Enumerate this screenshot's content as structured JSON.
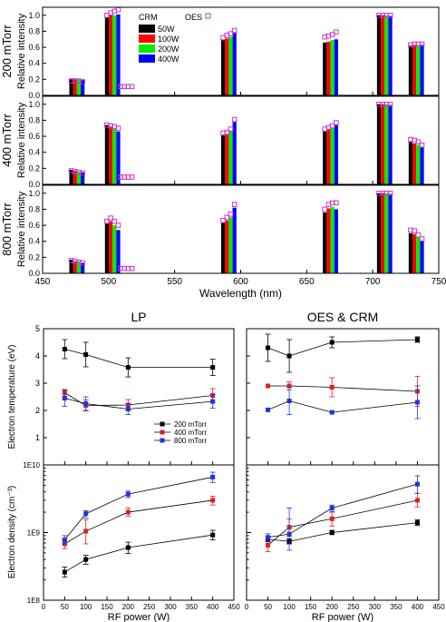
{
  "colors": {
    "p50": "#000000",
    "p100": "#ff0000",
    "p200": "#00ee00",
    "p400": "#0000ff",
    "oes": "#cc33cc",
    "lp200": "#000000",
    "lp400": "#dd2222",
    "lp800": "#2233dd"
  },
  "chart_data": [
    {
      "type": "bar",
      "title": "",
      "xlabel": "Wavelength (nm)",
      "ylabel": "Relative intensity",
      "xlim": [
        450,
        750
      ],
      "ylim": [
        0,
        1.1
      ],
      "xticks": [
        "450",
        "500",
        "550",
        "600",
        "650",
        "700",
        "750"
      ],
      "yticks": [
        "0.0",
        "0.2",
        "0.4",
        "0.6",
        "0.8",
        "1.0"
      ],
      "legend": {
        "crm_title": "CRM",
        "oes_title": "OES",
        "entries": [
          "50W",
          "100W",
          "200W",
          "400W"
        ],
        "placement": "top-center"
      },
      "lines_nm": [
        476,
        503,
        591,
        668,
        709,
        733
      ],
      "panels": [
        {
          "row_label": "200 mTorr",
          "crm": {
            "50W": [
              0.2,
              0.16,
              0.69,
              0.66,
              1.0,
              0.62
            ],
            "100W": [
              0.2,
              0.16,
              0.71,
              0.67,
              1.0,
              0.63
            ],
            "200W": [
              0.2,
              0.16,
              0.73,
              0.69,
              1.0,
              0.63
            ],
            "400W": [
              0.19,
              0.15,
              0.78,
              0.7,
              0.99,
              0.63
            ]
          },
          "oes": {
            "50W": [
              0.18,
              0.16,
              0.72,
              0.73,
              1.0,
              0.63
            ],
            "100W": [
              0.18,
              0.17,
              0.75,
              0.74,
              1.0,
              0.64
            ],
            "200W": [
              0.18,
              0.18,
              0.77,
              0.76,
              1.0,
              0.64
            ],
            "400W": [
              0.17,
              0.18,
              0.81,
              0.79,
              1.0,
              0.64
            ]
          },
          "crm_503": [
            0.97,
            1.0,
            1.0,
            1.01
          ],
          "oes_503": [
            1.0,
            1.03,
            1.05,
            1.07
          ],
          "oes_510": [
            0.11,
            0.11,
            0.11,
            0.11
          ]
        },
        {
          "row_label": "400 mTorr",
          "crm": {
            "50W": [
              0.18,
              0.12,
              0.62,
              0.67,
              1.0,
              0.53
            ],
            "100W": [
              0.17,
              0.12,
              0.63,
              0.69,
              1.0,
              0.51
            ],
            "200W": [
              0.16,
              0.12,
              0.67,
              0.7,
              1.0,
              0.49
            ],
            "400W": [
              0.15,
              0.11,
              0.78,
              0.74,
              0.99,
              0.46
            ]
          },
          "oes": {
            "50W": [
              0.17,
              0.12,
              0.64,
              0.69,
              1.0,
              0.56
            ],
            "100W": [
              0.16,
              0.12,
              0.65,
              0.71,
              1.0,
              0.55
            ],
            "200W": [
              0.15,
              0.13,
              0.69,
              0.73,
              1.0,
              0.53
            ],
            "400W": [
              0.14,
              0.13,
              0.81,
              0.77,
              1.0,
              0.49
            ]
          },
          "crm_503": [
            0.74,
            0.72,
            0.7,
            0.66
          ],
          "oes_503": [
            0.74,
            0.73,
            0.72,
            0.7
          ],
          "oes_510": [
            0.09,
            0.09,
            0.09,
            0.09
          ]
        },
        {
          "row_label": "800 mTorr",
          "crm": {
            "50W": [
              0.17,
              0.11,
              0.63,
              0.76,
              1.0,
              0.5
            ],
            "100W": [
              0.15,
              0.1,
              0.66,
              0.81,
              1.0,
              0.49
            ],
            "200W": [
              0.15,
              0.1,
              0.7,
              0.83,
              1.0,
              0.45
            ],
            "400W": [
              0.13,
              0.09,
              0.82,
              0.8,
              0.99,
              0.4
            ]
          },
          "oes": {
            "50W": [
              0.16,
              0.11,
              0.66,
              0.8,
              1.0,
              0.54
            ],
            "100W": [
              0.15,
              0.11,
              0.7,
              0.86,
              1.0,
              0.53
            ],
            "200W": [
              0.14,
              0.1,
              0.74,
              0.88,
              1.0,
              0.48
            ],
            "400W": [
              0.13,
              0.1,
              0.86,
              0.88,
              1.0,
              0.43
            ]
          },
          "crm_503": [
            0.62,
            0.65,
            0.6,
            0.54
          ],
          "oes_503": [
            0.65,
            0.69,
            0.65,
            0.6
          ],
          "oes_510": [
            0.06,
            0.06,
            0.06,
            0.06
          ]
        }
      ]
    },
    {
      "type": "line",
      "titles": [
        "LP",
        "OES & CRM"
      ],
      "xlabel": "RF power (W)",
      "x": [
        50,
        100,
        200,
        400
      ],
      "xlim": [
        0,
        450
      ],
      "xticks": [
        "0",
        "50",
        "100",
        "150",
        "200",
        "250",
        "300",
        "350",
        "400",
        "450"
      ],
      "legend": {
        "entries": [
          "200 mTorr",
          "400 mTorr",
          "800 mTorr"
        ],
        "placement": "top-right of left panel"
      },
      "temperature": {
        "ylabel": "Electron temperature (eV)",
        "ylim": [
          0,
          5
        ],
        "yticks": [
          "0",
          "1",
          "2",
          "3",
          "4",
          "5"
        ],
        "LP": [
          {
            "name": "200 mTorr",
            "values": [
              4.25,
              4.05,
              3.58,
              3.58
            ],
            "err": [
              0.35,
              0.45,
              0.35,
              0.3
            ]
          },
          {
            "name": "400 mTorr",
            "values": [
              2.65,
              2.18,
              2.2,
              2.55
            ],
            "err": [
              0.12,
              0.2,
              0.2,
              0.25
            ]
          },
          {
            "name": "800 mTorr",
            "values": [
              2.45,
              2.25,
              2.05,
              2.33
            ],
            "err": [
              0.3,
              0.25,
              0.2,
              0.25
            ]
          }
        ],
        "OES": [
          {
            "name": "200 mTorr",
            "values": [
              4.3,
              4.0,
              4.5,
              4.6
            ],
            "err": [
              0.5,
              0.6,
              0.2,
              0.1
            ]
          },
          {
            "name": "400 mTorr",
            "values": [
              2.9,
              2.9,
              2.85,
              2.7
            ],
            "err": [
              0.0,
              0.15,
              0.35,
              0.55
            ]
          },
          {
            "name": "800 mTorr",
            "values": [
              2.02,
              2.35,
              1.93,
              2.3
            ],
            "err": [
              0.0,
              0.5,
              0.0,
              0.6
            ]
          }
        ]
      },
      "density": {
        "ylabel": "Electron density (cm⁻³)",
        "yscale": "log",
        "ylim": [
          100000000.0,
          10000000000.0
        ],
        "yticks": [
          "1E8",
          "1E9",
          "1E10"
        ],
        "LP": [
          {
            "name": "200 mTorr",
            "values": [
              260000000.0,
              400000000.0,
              600000000.0,
              920000000.0
            ],
            "err_lo": [
              220000000.0,
              340000000.0,
              490000000.0,
              780000000.0
            ],
            "err_hi": [
              310000000.0,
              460000000.0,
              720000000.0,
              1080000000.0
            ]
          },
          {
            "name": "400 mTorr",
            "values": [
              680000000.0,
              1050000000.0,
              2000000000.0,
              3000000000.0
            ],
            "err_lo": [
              580000000.0,
              680000000.0,
              1750000000.0,
              2550000000.0
            ],
            "err_hi": [
              790000000.0,
              1550000000.0,
              2300000000.0,
              3450000000.0
            ]
          },
          {
            "name": "800 mTorr",
            "values": [
              780000000.0,
              1900000000.0,
              3700000000.0,
              6600000000.0
            ],
            "err_lo": [
              680000000.0,
              1650000000.0,
              3300000000.0,
              5500000000.0
            ],
            "err_hi": [
              900000000.0,
              2100000000.0,
              4100000000.0,
              7800000000.0
            ]
          }
        ],
        "OES": [
          {
            "name": "200 mTorr",
            "values": [
              800000000.0,
              740000000.0,
              1000000000.0,
              1400000000.0
            ],
            "err_lo": [
              730000000.0,
              680000000.0,
              930000000.0,
              1270000000.0
            ],
            "err_hi": [
              880000000.0,
              810000000.0,
              1080000000.0,
              1550000000.0
            ]
          },
          {
            "name": "400 mTorr",
            "values": [
              650000000.0,
              1200000000.0,
              1600000000.0,
              3000000000.0
            ],
            "err_lo": [
              520000000.0,
              880000000.0,
              1250000000.0,
              2400000000.0
            ],
            "err_hi": [
              790000000.0,
              1600000000.0,
              2000000000.0,
              3800000000.0
            ]
          },
          {
            "name": "800 mTorr",
            "values": [
              850000000.0,
              950000000.0,
              2300000000.0,
              5200000000.0
            ],
            "err_lo": [
              730000000.0,
              550000000.0,
              2050000000.0,
              3800000000.0
            ],
            "err_hi": [
              960000000.0,
              2300000000.0,
              2550000000.0,
              6900000000.0
            ]
          }
        ]
      }
    }
  ]
}
